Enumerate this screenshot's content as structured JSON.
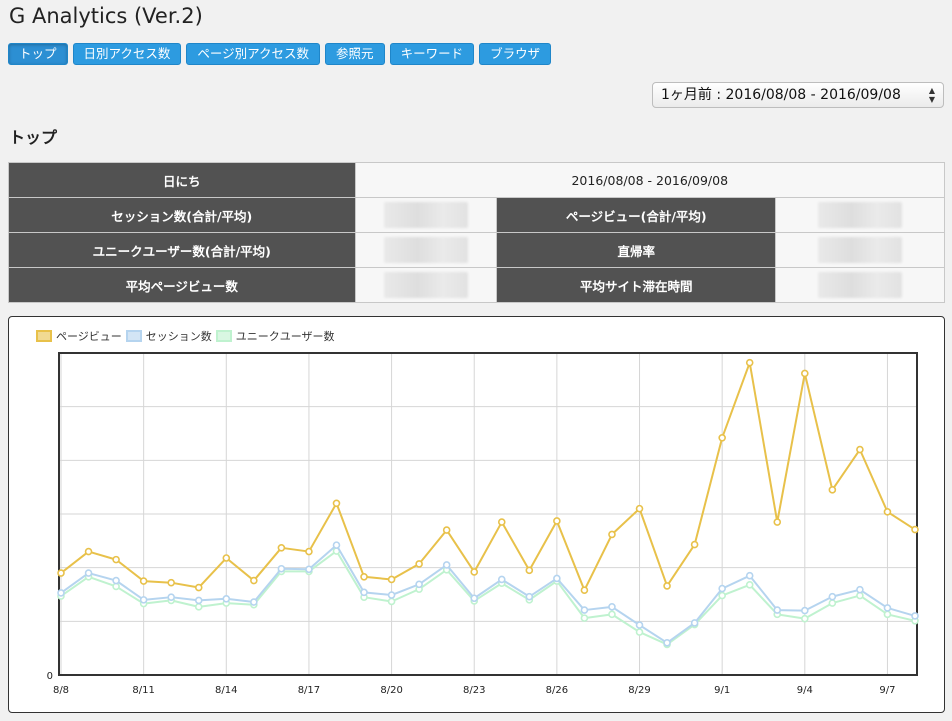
{
  "app": {
    "title": "G Analytics (Ver.2)"
  },
  "nav": {
    "items": [
      {
        "label": "トップ",
        "active": true
      },
      {
        "label": "日別アクセス数"
      },
      {
        "label": "ページ別アクセス数"
      },
      {
        "label": "参照元"
      },
      {
        "label": "キーワード"
      },
      {
        "label": "ブラウザ"
      }
    ]
  },
  "range_select": {
    "value": "1ヶ月前 : 2016/08/08 - 2016/09/08"
  },
  "section": {
    "title": "トップ"
  },
  "summary": {
    "date_label": "日にち",
    "date_value": "2016/08/08 - 2016/09/08",
    "sessions_label": "セッション数(合計/平均)",
    "pageviews_label": "ページビュー(合計/平均)",
    "users_label": "ユニークユーザー数(合計/平均)",
    "bounce_label": "直帰率",
    "avg_pages_label": "平均ページビュー数",
    "avg_time_label": "平均サイト滞在時間"
  },
  "colors": {
    "pageviews": "#e8c14a",
    "sessions": "#b5d4ef",
    "users": "#bff2cf",
    "nav": "#2d9be0"
  },
  "chart_data": {
    "type": "line",
    "x": [
      "8/8",
      "8/9",
      "8/10",
      "8/11",
      "8/12",
      "8/13",
      "8/14",
      "8/15",
      "8/16",
      "8/17",
      "8/18",
      "8/19",
      "8/20",
      "8/21",
      "8/22",
      "8/23",
      "8/24",
      "8/25",
      "8/26",
      "8/27",
      "8/28",
      "8/29",
      "8/30",
      "8/31",
      "9/1",
      "9/2",
      "9/3",
      "9/4",
      "9/5",
      "9/6",
      "9/7",
      "9/8"
    ],
    "xtick_labels": [
      "8/8",
      "8/11",
      "8/14",
      "8/17",
      "8/20",
      "8/23",
      "8/26",
      "8/29",
      "9/1",
      "9/4",
      "9/7"
    ],
    "ytick_labels": [
      "0"
    ],
    "ylim": [
      0,
      6
    ],
    "grid": true,
    "legend_position": "top-left",
    "series": [
      {
        "name": "ページビュー",
        "values": [
          1.9,
          2.3,
          2.15,
          1.75,
          1.72,
          1.63,
          2.18,
          1.76,
          2.37,
          2.3,
          3.2,
          1.83,
          1.78,
          2.07,
          2.7,
          1.92,
          2.85,
          1.95,
          2.87,
          1.58,
          2.62,
          3.1,
          1.66,
          2.43,
          4.42,
          5.82,
          2.85,
          5.62,
          3.45,
          4.2,
          3.04,
          2.71
        ]
      },
      {
        "name": "セッション数",
        "values": [
          1.53,
          1.9,
          1.76,
          1.4,
          1.45,
          1.39,
          1.42,
          1.36,
          1.98,
          1.97,
          2.42,
          1.54,
          1.49,
          1.69,
          2.05,
          1.43,
          1.78,
          1.46,
          1.8,
          1.21,
          1.27,
          0.93,
          0.6,
          0.97,
          1.61,
          1.85,
          1.21,
          1.2,
          1.46,
          1.59,
          1.25,
          1.1
        ]
      },
      {
        "name": "ユニークユーザー数",
        "values": [
          1.47,
          1.83,
          1.65,
          1.33,
          1.39,
          1.27,
          1.34,
          1.31,
          1.93,
          1.93,
          2.31,
          1.45,
          1.37,
          1.6,
          1.96,
          1.38,
          1.71,
          1.4,
          1.75,
          1.06,
          1.13,
          0.8,
          0.57,
          0.94,
          1.48,
          1.68,
          1.13,
          1.05,
          1.34,
          1.48,
          1.13,
          1.01
        ]
      }
    ]
  }
}
